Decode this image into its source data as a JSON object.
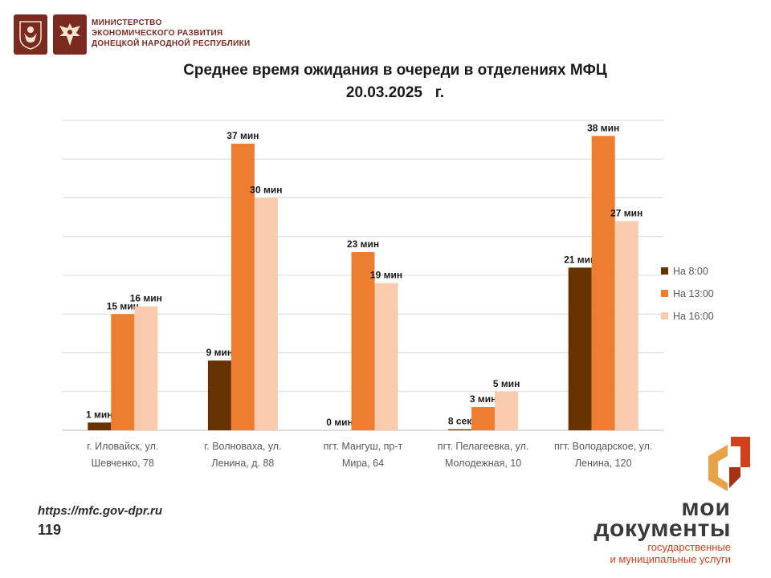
{
  "header": {
    "ministry_lines": [
      "МИНИСТЕРСТВО",
      "ЭКОНОМИЧЕСКОГО РАЗВИТИЯ",
      "ДОНЕЦКОЙ НАРОДНОЙ РЕСПУБЛИКИ"
    ],
    "emblem_1_icon": "coat-of-arms-icon",
    "emblem_2_icon": "eagle-emblem-icon",
    "emblem_color": "#7b2a20"
  },
  "chart_data": {
    "type": "bar",
    "title": [
      "Среднее время ожидания в очереди в отделениях МФЦ",
      "20.03.2025   г."
    ],
    "categories": [
      [
        "г. Иловайск, ул.",
        "Шевченко, 78"
      ],
      [
        "г. Волноваха, ул.",
        "Ленина, д. 88"
      ],
      [
        "пгт. Мангуш, пр-т",
        "Мира, 64"
      ],
      [
        "пгт. Пелагеевка, ул.",
        "Молодежная, 10"
      ],
      [
        "пгт. Володарское, ул.",
        "Ленина, 120"
      ]
    ],
    "series": [
      {
        "name": "На 8:00",
        "color": "#663300",
        "values": [
          1,
          9,
          0,
          0.13,
          21
        ],
        "labels": [
          "1 мин",
          "9 мин",
          "0 мин",
          "8 сек",
          "21 мин"
        ]
      },
      {
        "name": "На 13:00",
        "color": "#ed7d31",
        "values": [
          15,
          37,
          23,
          3,
          38
        ],
        "labels": [
          "15 мин",
          "37 мин",
          "23 мин",
          "3 мин",
          "38 мин"
        ]
      },
      {
        "name": "На 16:00",
        "color": "#f8cbad",
        "values": [
          16,
          30,
          19,
          5,
          27
        ],
        "labels": [
          "16 мин",
          "30 мин",
          "19 мин",
          "5 мин",
          "27 мин"
        ]
      }
    ],
    "ylim": [
      0,
      40
    ],
    "grid": true,
    "legend_position": "right"
  },
  "footer": {
    "website": "https://mfc.gov-dpr.ru",
    "phone": "119"
  },
  "brand": {
    "line1": "мои",
    "line2": "документы",
    "line3": "государственные",
    "line4": "и муниципальные услуги",
    "mark_icon": "moi-dokumenty-logo-icon",
    "accent_color": "#d0421a",
    "text_color": "#3a3a3a"
  }
}
